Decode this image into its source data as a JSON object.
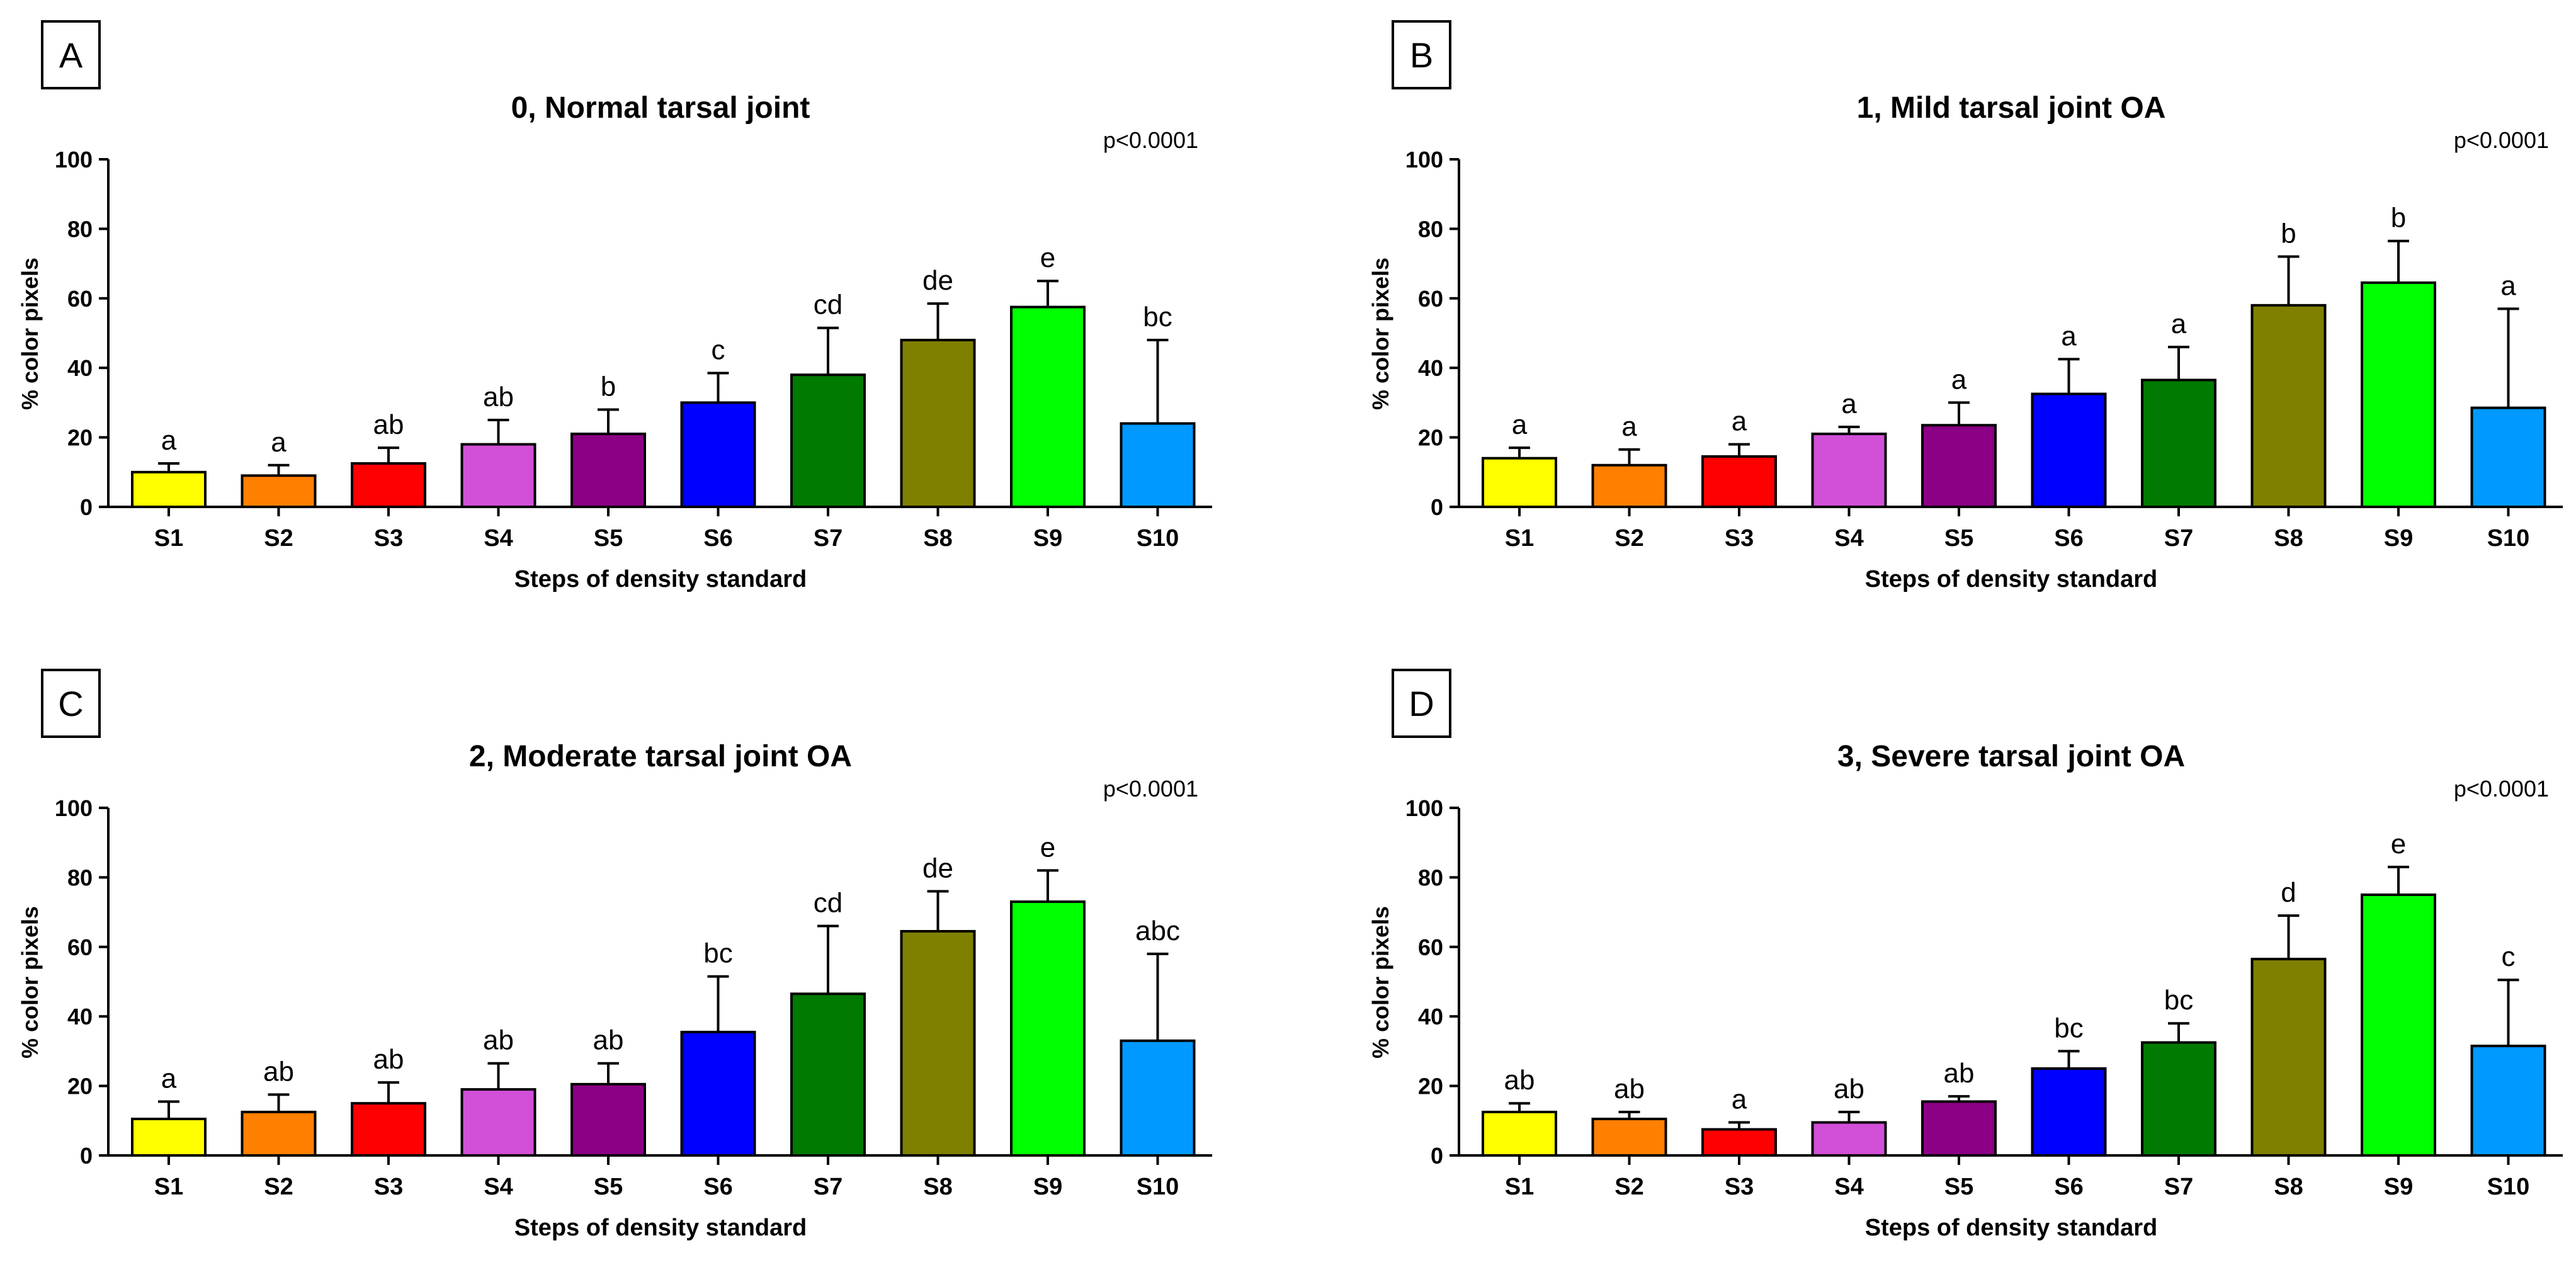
{
  "figure": {
    "colors": [
      "#ffff00",
      "#ff7f00",
      "#ff0000",
      "#d24fd8",
      "#8b0085",
      "#0000ff",
      "#007a00",
      "#7f7f00",
      "#00ff00",
      "#0099ff"
    ],
    "axis_color": "#000000"
  },
  "chart_data": [
    {
      "panel_letter": "A",
      "type": "bar",
      "title": "0, Normal tarsal joint",
      "p_value": "p<0.0001",
      "xlabel": "Steps of density standard",
      "ylabel": "% color pixels",
      "ylim": [
        0,
        100
      ],
      "yticks": [
        "0",
        "20",
        "40",
        "60",
        "80",
        "100"
      ],
      "categories": [
        "S1",
        "S2",
        "S3",
        "S4",
        "S5",
        "S6",
        "S7",
        "S8",
        "S9",
        "S10"
      ],
      "values": [
        10,
        9,
        12.5,
        18,
        21,
        30,
        38,
        48,
        57.5,
        24
      ],
      "errors": [
        2.5,
        3,
        4.5,
        7,
        7,
        8.5,
        13.5,
        10.5,
        7.5,
        24
      ],
      "significance": [
        "a",
        "a",
        "ab",
        "ab",
        "b",
        "c",
        "cd",
        "de",
        "e",
        "bc"
      ]
    },
    {
      "panel_letter": "B",
      "type": "bar",
      "title": "1, Mild tarsal joint  OA",
      "p_value": "p<0.0001",
      "xlabel": "Steps of density standard",
      "ylabel": "% color pixels",
      "ylim": [
        0,
        100
      ],
      "yticks": [
        "0",
        "20",
        "40",
        "60",
        "80",
        "100"
      ],
      "categories": [
        "S1",
        "S2",
        "S3",
        "S4",
        "S5",
        "S6",
        "S7",
        "S8",
        "S9",
        "S10"
      ],
      "values": [
        14,
        12,
        14.5,
        21,
        23.5,
        32.5,
        36.5,
        58,
        64.5,
        28.5
      ],
      "errors": [
        3,
        4.5,
        3.5,
        2,
        6.5,
        10,
        9.5,
        14,
        12,
        28.5
      ],
      "significance": [
        "a",
        "a",
        "a",
        "a",
        "a",
        "a",
        "a",
        "b",
        "b",
        "a"
      ]
    },
    {
      "panel_letter": "C",
      "type": "bar",
      "title": "2, Moderate tarsal joint  OA",
      "p_value": "p<0.0001",
      "xlabel": "Steps of density standard",
      "ylabel": "% color pixels",
      "ylim": [
        0,
        100
      ],
      "yticks": [
        "0",
        "20",
        "40",
        "60",
        "80",
        "100"
      ],
      "categories": [
        "S1",
        "S2",
        "S3",
        "S4",
        "S5",
        "S6",
        "S7",
        "S8",
        "S9",
        "S10"
      ],
      "values": [
        10.5,
        12.5,
        15,
        19,
        20.5,
        35.5,
        46.5,
        64.5,
        73,
        33
      ],
      "errors": [
        5,
        5,
        6,
        7.5,
        6,
        16,
        19.5,
        11.5,
        9,
        25
      ],
      "significance": [
        "a",
        "ab",
        "ab",
        "ab",
        "ab",
        "bc",
        "cd",
        "de",
        "e",
        "abc"
      ]
    },
    {
      "panel_letter": "D",
      "type": "bar",
      "title": "3, Severe tarsal joint  OA",
      "p_value": "p<0.0001",
      "xlabel": "Steps of density standard",
      "ylabel": "% color pixels",
      "ylim": [
        0,
        100
      ],
      "yticks": [
        "0",
        "20",
        "40",
        "60",
        "80",
        "100"
      ],
      "categories": [
        "S1",
        "S2",
        "S3",
        "S4",
        "S5",
        "S6",
        "S7",
        "S8",
        "S9",
        "S10"
      ],
      "values": [
        12.5,
        10.5,
        7.5,
        9.5,
        15.5,
        25,
        32.5,
        56.5,
        75,
        31.5
      ],
      "errors": [
        2.5,
        2,
        2,
        3,
        1.5,
        5,
        5.5,
        12.5,
        8,
        19
      ],
      "significance": [
        "ab",
        "ab",
        "a",
        "ab",
        "ab",
        "bc",
        "bc",
        "d",
        "e",
        "c"
      ]
    }
  ]
}
